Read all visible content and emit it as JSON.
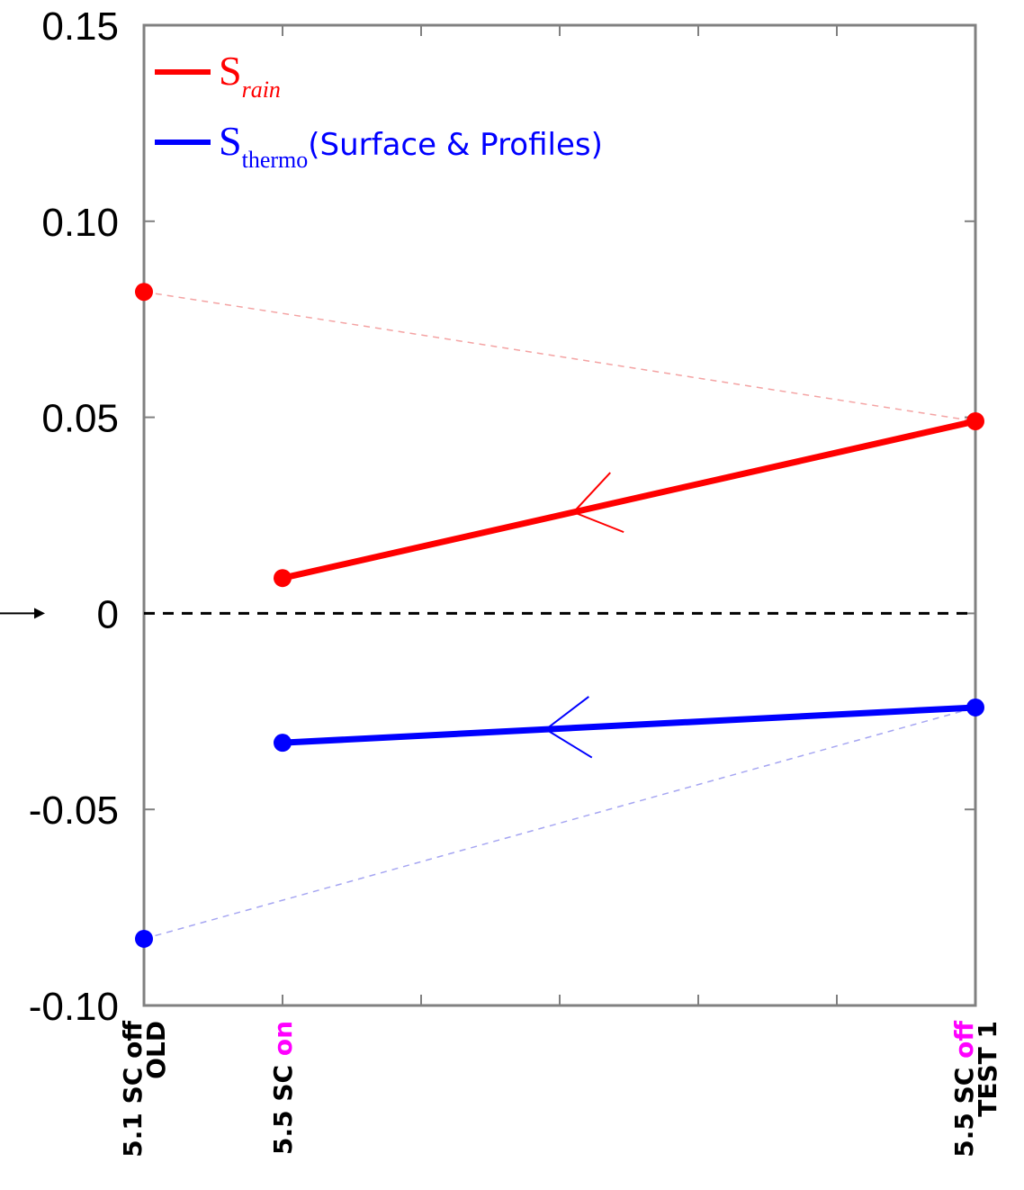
{
  "chart_data": {
    "type": "line",
    "ylim": [
      -0.1,
      0.15
    ],
    "ytick_labels": [
      "0.15",
      "0.10",
      "0.05",
      "0",
      "-0.05",
      "-0.10"
    ],
    "ytick_values": [
      0.15,
      0.1,
      0.05,
      0,
      -0.05,
      -0.1
    ],
    "x_positions": [
      0,
      1,
      6
    ],
    "xlim": [
      0,
      6
    ],
    "categories": [
      {
        "lines": [
          {
            "parts": [
              {
                "text": "5.1 SC off",
                "color": "#000000"
              }
            ]
          },
          {
            "parts": [
              {
                "text": "OLD",
                "color": "#000000"
              }
            ]
          }
        ]
      },
      {
        "lines": [
          {
            "parts": [
              {
                "text": "5.5 SC ",
                "color": "#000000"
              },
              {
                "text": "on",
                "color": "#ff00ff"
              }
            ]
          }
        ]
      },
      {
        "lines": [
          {
            "parts": [
              {
                "text": "5.5 SC ",
                "color": "#000000"
              },
              {
                "text": "off",
                "color": "#ff00ff"
              }
            ]
          },
          {
            "parts": [
              {
                "text": "TEST 1",
                "color": "#000000"
              }
            ]
          }
        ]
      }
    ],
    "zero_line": {
      "value": 0,
      "style": "dashed",
      "color": "#000000"
    },
    "series": [
      {
        "key": "rain",
        "legend_main": "S",
        "legend_sub": "rain",
        "legend_suffix": "",
        "color": "#ff0000",
        "light_color": "#f4a3a3",
        "points": [
          {
            "x": 0,
            "y": 0.082
          },
          {
            "x": 1,
            "y": 0.009
          },
          {
            "x": 6,
            "y": 0.049
          }
        ],
        "solid": [
          [
            1,
            6
          ]
        ],
        "dashed": [
          [
            0,
            6
          ]
        ],
        "arrow": {
          "at": 0.42,
          "direction": "toward-start"
        }
      },
      {
        "key": "thermo",
        "legend_main": "S",
        "legend_sub": "thermo",
        "legend_suffix": "(Surface & Profiles)",
        "color": "#0000ff",
        "light_color": "#a6a6f2",
        "points": [
          {
            "x": 0,
            "y": -0.083
          },
          {
            "x": 1,
            "y": -0.033
          },
          {
            "x": 6,
            "y": -0.024
          }
        ],
        "solid": [
          [
            1,
            6
          ]
        ],
        "dashed": [
          [
            0,
            6
          ]
        ],
        "arrow": {
          "at": 0.38,
          "direction": "toward-start"
        }
      }
    ],
    "legend_position": "top-left",
    "grid": false
  }
}
